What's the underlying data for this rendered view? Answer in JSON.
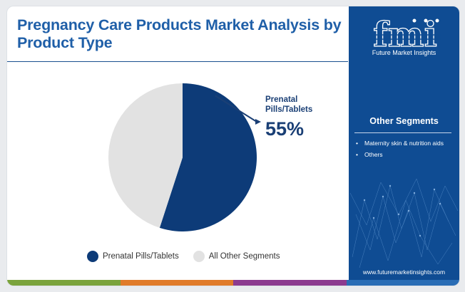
{
  "title": "Pregnancy Care Products Market Analysis by Product Type",
  "brand": {
    "logo_text": "fmi",
    "name": "Future Market Insights",
    "url": "www.futuremarketinsights.com"
  },
  "other_segments": {
    "title": "Other Segments",
    "items": [
      "Maternity skin & nutrition aids",
      "Others"
    ]
  },
  "callout": {
    "label": "Prenatal Pills/Tablets",
    "value": "55%"
  },
  "colors": {
    "title": "#1f5fa8",
    "panel": "#0f4c93",
    "series_primary": "#0d3b78",
    "series_other": "#e2e2e2",
    "bar": [
      "#7aa33c",
      "#e07b2a",
      "#8c3b8f",
      "#2a6db5"
    ]
  },
  "chart_data": {
    "type": "pie",
    "title": "",
    "slices": [
      {
        "label": "Prenatal Pills/Tablets",
        "value": 55
      },
      {
        "label": "All Other Segments",
        "value": 45
      }
    ],
    "legend_placement": "bottom"
  }
}
